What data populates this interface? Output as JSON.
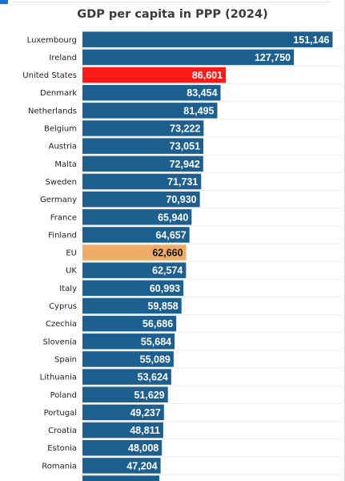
{
  "chart_data": {
    "type": "bar",
    "orientation": "horizontal",
    "title": "GDP per capita in PPP (2024)",
    "xlabel": "",
    "ylabel": "",
    "grid": true,
    "xlim": [
      0,
      160000
    ],
    "categories": [
      "Luxembourg",
      "Ireland",
      "United States",
      "Denmark",
      "Netherlands",
      "Belgium",
      "Austria",
      "Malta",
      "Sweden",
      "Germany",
      "France",
      "Finland",
      "EU",
      "UK",
      "Italy",
      "Cyprus",
      "Czechia",
      "Slovenia",
      "Spain",
      "Lithuania",
      "Poland",
      "Portugal",
      "Croatia",
      "Estonia",
      "Romania"
    ],
    "values": [
      151146,
      127750,
      86601,
      83454,
      81495,
      73222,
      73051,
      72942,
      71731,
      70930,
      65940,
      64657,
      62660,
      62574,
      60993,
      59858,
      56686,
      55684,
      55089,
      53624,
      51629,
      49237,
      48811,
      48008,
      47204
    ],
    "value_labels": [
      "151,146",
      "127,750",
      "86,601",
      "83,454",
      "81,495",
      "73,222",
      "73,051",
      "72,942",
      "71,731",
      "70,930",
      "65,940",
      "64,657",
      "62,660",
      "62,574",
      "60,993",
      "59,858",
      "56,686",
      "55,684",
      "55,089",
      "53,624",
      "51,629",
      "49,237",
      "48,811",
      "48,008",
      "47,204"
    ],
    "colors": {
      "default": "#1d5f8e",
      "highlight_us": "#ff1a1a",
      "highlight_eu": "#efac66",
      "label_light": "#ffffff",
      "label_dark": "#111111"
    }
  }
}
